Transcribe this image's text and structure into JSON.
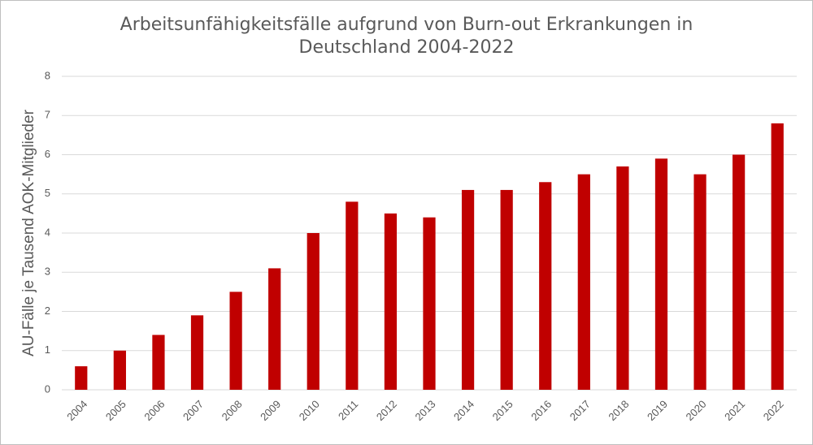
{
  "chart_data": {
    "type": "bar",
    "title": [
      "Arbeitsunfähigkeitsfälle aufgrund von Burn-out Erkrankungen in",
      "Deutschland 2004-2022"
    ],
    "y_label": "AU-Fälle je Tausend AOK-Mitglieder",
    "categories": [
      "2004",
      "2005",
      "2006",
      "2007",
      "2008",
      "2009",
      "2010",
      "2011",
      "2012",
      "2013",
      "2014",
      "2015",
      "2016",
      "2017",
      "2018",
      "2019",
      "2020",
      "2021",
      "2022"
    ],
    "values": [
      0.6,
      1.0,
      1.4,
      1.9,
      2.5,
      3.1,
      4.0,
      4.8,
      4.5,
      4.4,
      5.1,
      5.1,
      5.3,
      5.5,
      5.7,
      5.9,
      5.5,
      6.0,
      6.8
    ],
    "color": "#c00000",
    "ylim": [
      0,
      8
    ],
    "yticks": [
      0,
      1,
      2,
      3,
      4,
      5,
      6,
      7,
      8
    ],
    "grid": true
  }
}
